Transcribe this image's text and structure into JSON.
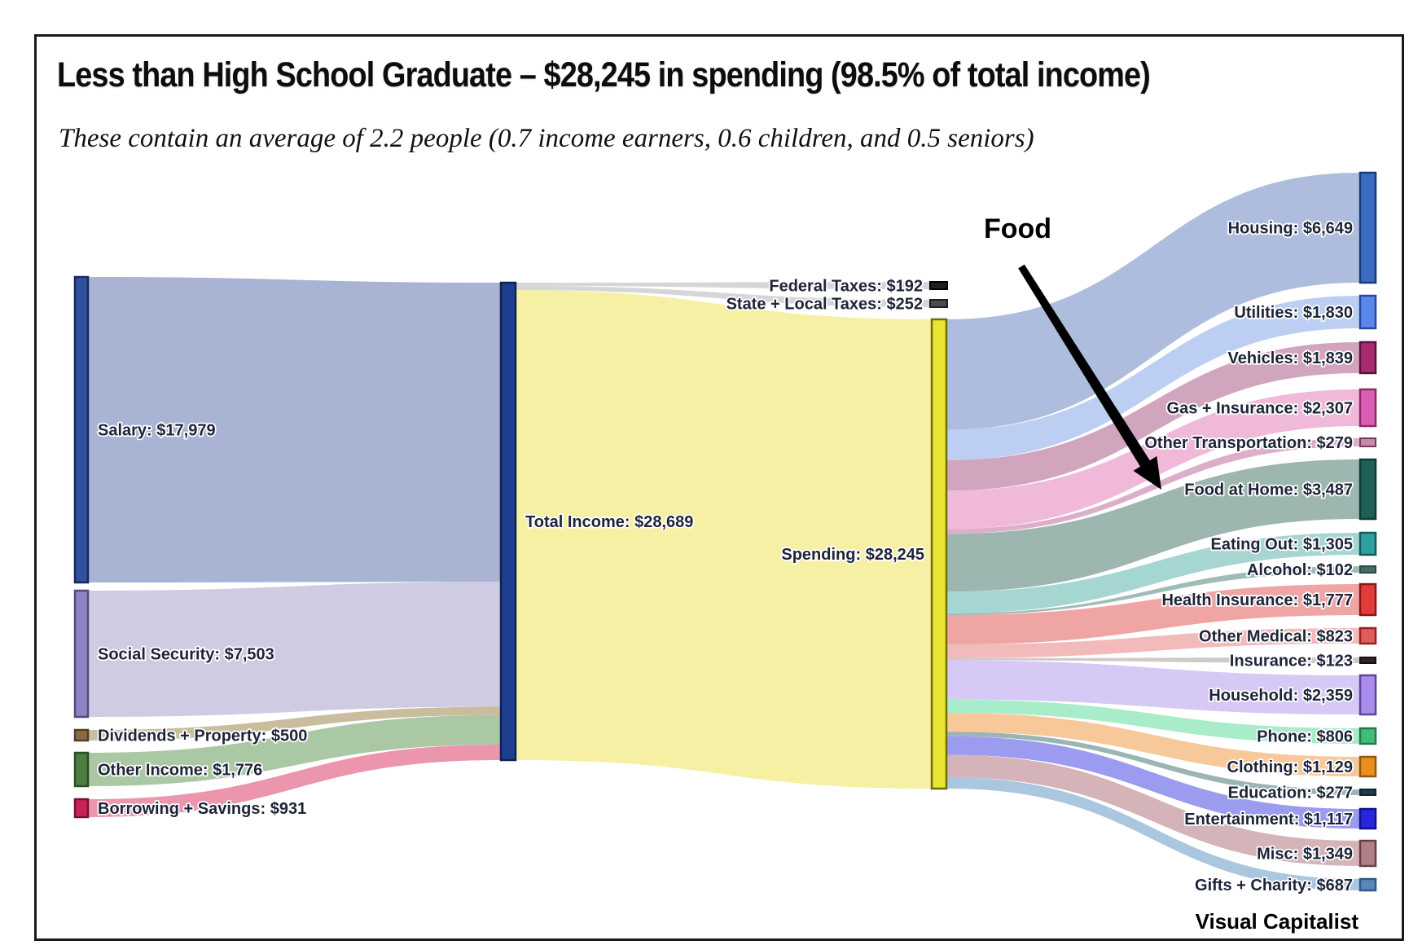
{
  "chart_data": {
    "type": "sankey",
    "title": "Less than High School Graduate – $28,245 in spending (98.5% of total income)",
    "subtitle": "These contain an average of 2.2 people (0.7 income earners, 0.6 children, and 0.5 seniors)",
    "annotation": "Food",
    "attribution": "Visual Capitalist",
    "unit": "USD per year",
    "nodes": [
      {
        "id": "salary",
        "label": "Salary",
        "value": 17979,
        "display": "Salary: $17,979",
        "fill": "#31519e",
        "stroke": "#16295c",
        "flow": "#a9b3d3"
      },
      {
        "id": "social_security",
        "label": "Social Security",
        "value": 7503,
        "display": "Social Security: $7,503",
        "fill": "#8f83c3",
        "stroke": "#57497f",
        "flow": "#cfcbe3"
      },
      {
        "id": "dividends_property",
        "label": "Dividends + Property",
        "value": 500,
        "display": "Dividends + Property: $500",
        "fill": "#8a6c44",
        "stroke": "#553f24",
        "flow": "#cabd9d"
      },
      {
        "id": "other_income",
        "label": "Other Income",
        "value": 1776,
        "display": "Other Income: $1,776",
        "fill": "#4c7e42",
        "stroke": "#2a4c22",
        "flow": "#a9c8a3"
      },
      {
        "id": "borrowing_savings",
        "label": "Borrowing + Savings",
        "value": 931,
        "display": "Borrowing + Savings: $931",
        "fill": "#c72355",
        "stroke": "#751232",
        "flow": "#ec96ad"
      },
      {
        "id": "total_income",
        "label": "Total Income",
        "value": 28689,
        "display": "Total Income: $28,689",
        "fill": "#1e3f8f",
        "stroke": "#0e2150",
        "flow": null
      },
      {
        "id": "federal_taxes",
        "label": "Federal Taxes",
        "value": 192,
        "display": "Federal Taxes: $192",
        "fill": "#1f1f1f",
        "stroke": "#000000",
        "flow": "#d6d6d6"
      },
      {
        "id": "state_local_taxes",
        "label": "State + Local Taxes",
        "value": 252,
        "display": "State + Local Taxes: $252",
        "fill": "#4b4b4b",
        "stroke": "#1f1f1f",
        "flow": "#d6d6d6"
      },
      {
        "id": "spending",
        "label": "Spending",
        "value": 28245,
        "display": "Spending: $28,245",
        "fill": "#e8e431",
        "stroke": "#6f6c0d",
        "flow": "#f5f0a3"
      },
      {
        "id": "housing",
        "label": "Housing",
        "value": 6649,
        "display": "Housing: $6,649",
        "fill": "#3a6cc2",
        "stroke": "#193a78",
        "flow": "#aebdde"
      },
      {
        "id": "utilities",
        "label": "Utilities",
        "value": 1830,
        "display": "Utilities: $1,830",
        "fill": "#5b86ea",
        "stroke": "#29499c",
        "flow": "#bccff2"
      },
      {
        "id": "vehicles",
        "label": "Vehicles",
        "value": 1839,
        "display": "Vehicles: $1,839",
        "fill": "#a82a70",
        "stroke": "#5c123c",
        "flow": "#d2a5bf"
      },
      {
        "id": "gas_insurance",
        "label": "Gas + Insurance",
        "value": 2307,
        "display": "Gas + Insurance: $2,307",
        "fill": "#da5fb5",
        "stroke": "#8c2a68",
        "flow": "#f0b9d9"
      },
      {
        "id": "other_transportation",
        "label": "Other Transportation",
        "value": 279,
        "display": "Other Transportation: $279",
        "fill": "#c489ad",
        "stroke": "#75395f",
        "flow": "#ddaec9"
      },
      {
        "id": "food_at_home",
        "label": "Food at Home",
        "value": 3487,
        "display": "Food at Home: $3,487",
        "fill": "#1f5f56",
        "stroke": "#103b34",
        "flow": "#9eb6b0"
      },
      {
        "id": "eating_out",
        "label": "Eating Out",
        "value": 1305,
        "display": "Eating Out: $1,305",
        "fill": "#2ea0a0",
        "stroke": "#155a5e",
        "flow": "#a5d6d2"
      },
      {
        "id": "alcohol",
        "label": "Alcohol",
        "value": 102,
        "display": "Alcohol: $102",
        "fill": "#4a6a66",
        "stroke": "#2a4a46",
        "flow": "#a0bcb8"
      },
      {
        "id": "health_insurance",
        "label": "Health Insurance",
        "value": 1777,
        "display": "Health Insurance: $1,777",
        "fill": "#e23b3b",
        "stroke": "#8e1515",
        "flow": "#f0a5a5"
      },
      {
        "id": "other_medical",
        "label": "Other Medical",
        "value": 823,
        "display": "Other Medical: $823",
        "fill": "#e25a5a",
        "stroke": "#942222",
        "flow": "#f2baba"
      },
      {
        "id": "insurance",
        "label": "Insurance",
        "value": 123,
        "display": "Insurance: $123",
        "fill": "#31222b",
        "stroke": "#151015",
        "flow": "#cfc9c9"
      },
      {
        "id": "household",
        "label": "Household",
        "value": 2359,
        "display": "Household: $2,359",
        "fill": "#a98cec",
        "stroke": "#5e4492",
        "flow": "#d6c9f6"
      },
      {
        "id": "phone",
        "label": "Phone",
        "value": 806,
        "display": "Phone: $806",
        "fill": "#42bd78",
        "stroke": "#27774c",
        "flow": "#a9ecca"
      },
      {
        "id": "clothing",
        "label": "Clothing",
        "value": 1129,
        "display": "Clothing: $1,129",
        "fill": "#ea8f1e",
        "stroke": "#905810",
        "flow": "#f7c99a"
      },
      {
        "id": "education",
        "label": "Education",
        "value": 277,
        "display": "Education: $277",
        "fill": "#1e3a4a",
        "stroke": "#0e2430",
        "flow": "#9bb4b4"
      },
      {
        "id": "entertainment",
        "label": "Entertainment",
        "value": 1117,
        "display": "Entertainment: $1,117",
        "fill": "#2726df",
        "stroke": "#12108c",
        "flow": "#9b9bef"
      },
      {
        "id": "misc",
        "label": "Misc",
        "value": 1349,
        "display": "Misc: $1,349",
        "fill": "#b07f88",
        "stroke": "#664048",
        "flow": "#d4b4b8"
      },
      {
        "id": "gifts_charity",
        "label": "Gifts + Charity",
        "value": 687,
        "display": "Gifts + Charity: $687",
        "fill": "#5a87b8",
        "stroke": "#2d5a8c",
        "flow": "#abc6df"
      }
    ],
    "links": [
      {
        "source": "salary",
        "target": "total_income",
        "value": 17979
      },
      {
        "source": "social_security",
        "target": "total_income",
        "value": 7503
      },
      {
        "source": "dividends_property",
        "target": "total_income",
        "value": 500
      },
      {
        "source": "other_income",
        "target": "total_income",
        "value": 1776
      },
      {
        "source": "borrowing_savings",
        "target": "total_income",
        "value": 931
      },
      {
        "source": "total_income",
        "target": "federal_taxes",
        "value": 192
      },
      {
        "source": "total_income",
        "target": "state_local_taxes",
        "value": 252
      },
      {
        "source": "total_income",
        "target": "spending",
        "value": 28245
      },
      {
        "source": "spending",
        "target": "housing",
        "value": 6649
      },
      {
        "source": "spending",
        "target": "utilities",
        "value": 1830
      },
      {
        "source": "spending",
        "target": "vehicles",
        "value": 1839
      },
      {
        "source": "spending",
        "target": "gas_insurance",
        "value": 2307
      },
      {
        "source": "spending",
        "target": "other_transportation",
        "value": 279
      },
      {
        "source": "spending",
        "target": "food_at_home",
        "value": 3487
      },
      {
        "source": "spending",
        "target": "eating_out",
        "value": 1305
      },
      {
        "source": "spending",
        "target": "alcohol",
        "value": 102
      },
      {
        "source": "spending",
        "target": "health_insurance",
        "value": 1777
      },
      {
        "source": "spending",
        "target": "other_medical",
        "value": 823
      },
      {
        "source": "spending",
        "target": "insurance",
        "value": 123
      },
      {
        "source": "spending",
        "target": "household",
        "value": 2359
      },
      {
        "source": "spending",
        "target": "phone",
        "value": 806
      },
      {
        "source": "spending",
        "target": "clothing",
        "value": 1129
      },
      {
        "source": "spending",
        "target": "education",
        "value": 277
      },
      {
        "source": "spending",
        "target": "entertainment",
        "value": 1117
      },
      {
        "source": "spending",
        "target": "misc",
        "value": 1349
      },
      {
        "source": "spending",
        "target": "gifts_charity",
        "value": 687
      }
    ]
  }
}
